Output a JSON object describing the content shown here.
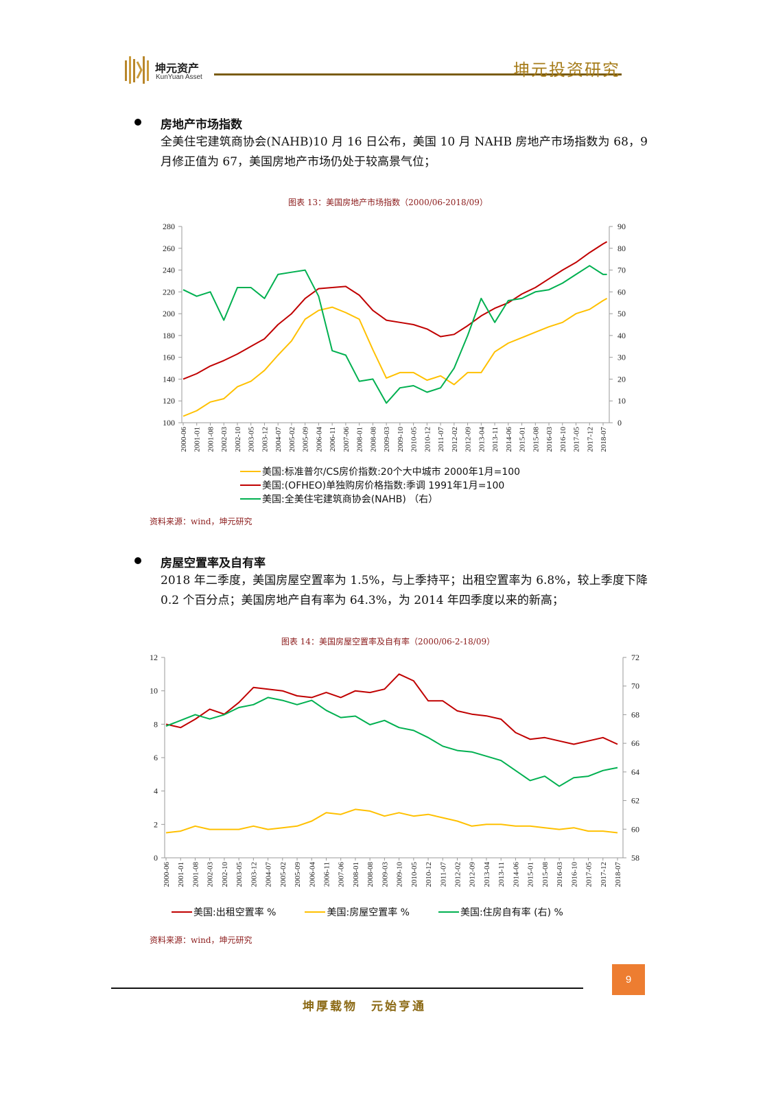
{
  "header": {
    "logo_cn": "坤元资产",
    "logo_en": "KunYuan Asset",
    "title": "坤元投资研究"
  },
  "section1": {
    "heading": "房地产市场指数",
    "text": "全美住宅建筑商协会(NAHB)10 月 16 日公布，美国 10 月 NAHB 房地产市场指数为 68，9 月修正值为 67，美国房地产市场仍处于较高景气位；",
    "caption": "图表 13：美国房地产市场指数（2000/06-2018/09）",
    "source": "资料来源：wind，坤元研究"
  },
  "section2": {
    "heading": "房屋空置率及自有率",
    "text": "2018 年二季度，美国房屋空置率为 1.5%，与上季持平；出租空置率为 6.8%，较上季度下降 0.2 个百分点；美国房地产自有率为 64.3%，为 2014 年四季度以来的新高；",
    "caption": "图表 14：美国房屋空置率及自有率（2000/06-2-18/09）",
    "source": "资料来源：wind，坤元研究"
  },
  "footer": {
    "page_number": "9",
    "motto": "坤厚载物　元始亨通"
  },
  "colors": {
    "red": "#C00000",
    "yellow": "#FFC000",
    "green": "#00B050",
    "accent": "#ED7D31",
    "gold": "#A67C1A"
  },
  "chart_data": [
    {
      "type": "line",
      "x": [
        "2000-06",
        "2001-01",
        "2001-08",
        "2002-03",
        "2002-10",
        "2003-05",
        "2003-12",
        "2004-07",
        "2005-02",
        "2005-09",
        "2006-04",
        "2006-11",
        "2007-06",
        "2008-01",
        "2008-08",
        "2009-03",
        "2009-10",
        "2010-05",
        "2010-12",
        "2011-07",
        "2012-02",
        "2012-09",
        "2013-04",
        "2013-11",
        "2014-06",
        "2015-01",
        "2015-08",
        "2016-03",
        "2016-10",
        "2017-05",
        "2017-12",
        "2018-07",
        "2018-09"
      ],
      "x_tick_labels": [
        "2000-06",
        "2001-01",
        "2001-08",
        "2002-03",
        "2002-10",
        "2003-05",
        "2003-12",
        "2004-07",
        "2005-02",
        "2005-09",
        "2006-04",
        "2006-11",
        "2007-06",
        "2008-01",
        "2008-08",
        "2009-03",
        "2009-10",
        "2010-05",
        "2010-12",
        "2011-07",
        "2012-02",
        "2012-09",
        "2013-04",
        "2013-11",
        "2014-06",
        "2015-01",
        "2015-08",
        "2016-03",
        "2016-10",
        "2017-05",
        "2017-12",
        "2018-07"
      ],
      "y_left": {
        "range": [
          100,
          280
        ],
        "ticks": [
          100,
          120,
          140,
          160,
          180,
          200,
          220,
          240,
          260,
          280
        ]
      },
      "y_right": {
        "range": [
          0,
          90
        ],
        "ticks": [
          0,
          10,
          20,
          30,
          40,
          50,
          60,
          70,
          80,
          90
        ]
      },
      "grid": false,
      "legend_position": "bottom",
      "series": [
        {
          "name": "美国:标准普尔/CS房价指数:20个大中城市 2000年1月=100",
          "axis": "left",
          "color": "#FFC000",
          "values": [
            106,
            111,
            119,
            122,
            133,
            138,
            148,
            162,
            175,
            195,
            203,
            206,
            201,
            195,
            167,
            141,
            146,
            146,
            139,
            143,
            135,
            146,
            146,
            165,
            173,
            178,
            183,
            188,
            192,
            200,
            204,
            212,
            214
          ]
        },
        {
          "name": "美国:(OFHEO)单独购房价格指数:季调 1991年1月=100",
          "axis": "left",
          "color": "#C00000",
          "values": [
            140,
            145,
            152,
            157,
            163,
            170,
            177,
            190,
            200,
            214,
            223,
            224,
            225,
            217,
            203,
            194,
            192,
            190,
            186,
            179,
            181,
            189,
            198,
            205,
            210,
            218,
            224,
            232,
            240,
            247,
            256,
            264,
            266
          ]
        },
        {
          "name": "美国:全美住宅建筑商协会(NAHB) （右）",
          "axis": "right",
          "color": "#00B050",
          "values": [
            61,
            58,
            60,
            47,
            62,
            62,
            57,
            68,
            69,
            70,
            58,
            33,
            31,
            19,
            20,
            9,
            16,
            17,
            14,
            16,
            25,
            40,
            57,
            46,
            56,
            57,
            60,
            61,
            64,
            68,
            72,
            68,
            68
          ]
        }
      ]
    },
    {
      "type": "line",
      "x": [
        "2000-06",
        "2001-01",
        "2001-08",
        "2002-03",
        "2002-10",
        "2003-05",
        "2003-12",
        "2004-07",
        "2005-02",
        "2005-09",
        "2006-04",
        "2006-11",
        "2007-06",
        "2008-01",
        "2008-08",
        "2009-03",
        "2009-10",
        "2010-05",
        "2010-12",
        "2011-07",
        "2012-02",
        "2012-09",
        "2013-04",
        "2013-11",
        "2014-06",
        "2015-01",
        "2015-08",
        "2016-03",
        "2016-10",
        "2017-05",
        "2017-12",
        "2018-07"
      ],
      "x_tick_labels": [
        "2000-06",
        "2001-01",
        "2001-08",
        "2002-03",
        "2002-10",
        "2003-05",
        "2003-12",
        "2004-07",
        "2005-02",
        "2005-09",
        "2006-04",
        "2006-11",
        "2007-06",
        "2008-01",
        "2008-08",
        "2009-03",
        "2009-10",
        "2010-05",
        "2010-12",
        "2011-07",
        "2012-02",
        "2012-09",
        "2013-04",
        "2013-11",
        "2014-06",
        "2015-01",
        "2015-08",
        "2016-03",
        "2016-10",
        "2017-05",
        "2017-12",
        "2018-07"
      ],
      "y_left": {
        "range": [
          0,
          12
        ],
        "ticks": [
          0,
          2,
          4,
          6,
          8,
          10,
          12
        ]
      },
      "y_right": {
        "range": [
          58,
          72
        ],
        "ticks": [
          58,
          60,
          62,
          64,
          66,
          68,
          70,
          72
        ]
      },
      "grid": false,
      "legend_position": "bottom",
      "series": [
        {
          "name": "美国:出租空置率 %",
          "axis": "left",
          "color": "#C00000",
          "values": [
            8.0,
            7.8,
            8.3,
            8.9,
            8.6,
            9.3,
            10.2,
            10.1,
            10.0,
            9.7,
            9.6,
            9.9,
            9.6,
            10.0,
            9.9,
            10.1,
            11.0,
            10.6,
            9.4,
            9.4,
            8.8,
            8.6,
            8.5,
            8.3,
            7.5,
            7.1,
            7.2,
            7.0,
            6.8,
            7.0,
            7.2,
            6.8
          ]
        },
        {
          "name": "美国:房屋空置率 %",
          "axis": "left",
          "color": "#FFC000",
          "values": [
            1.5,
            1.6,
            1.9,
            1.7,
            1.7,
            1.7,
            1.9,
            1.7,
            1.8,
            1.9,
            2.2,
            2.7,
            2.6,
            2.9,
            2.8,
            2.5,
            2.7,
            2.5,
            2.6,
            2.4,
            2.2,
            1.9,
            2.0,
            2.0,
            1.9,
            1.9,
            1.8,
            1.7,
            1.8,
            1.6,
            1.6,
            1.5
          ]
        },
        {
          "name": "美国:住房自有率 (右) %",
          "axis": "right",
          "color": "#00B050",
          "values": [
            67.2,
            67.6,
            68.0,
            67.7,
            68.0,
            68.5,
            68.7,
            69.2,
            69.0,
            68.7,
            69.0,
            68.3,
            67.8,
            67.9,
            67.3,
            67.6,
            67.1,
            66.9,
            66.4,
            65.8,
            65.5,
            65.4,
            65.1,
            64.8,
            64.1,
            63.4,
            63.7,
            63.0,
            63.6,
            63.7,
            64.1,
            64.3
          ]
        }
      ]
    }
  ]
}
